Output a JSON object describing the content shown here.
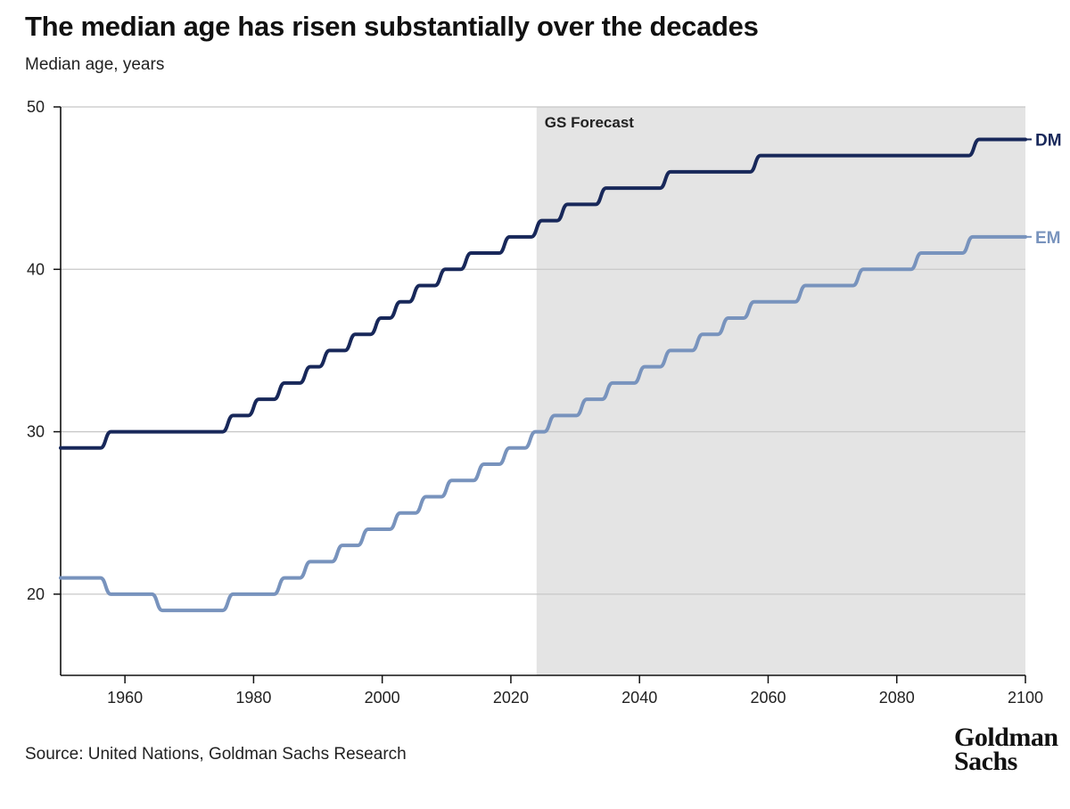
{
  "header": {
    "title": "The median age has risen substantially over the decades",
    "subtitle": "Median age, years"
  },
  "footer": {
    "source": "Source: United Nations, Goldman Sachs Research",
    "logo_line1": "Goldman",
    "logo_line2": "Sachs"
  },
  "chart_data": {
    "type": "line",
    "title": "The median age has risen substantially over the decades",
    "ylabel": "Median age, years",
    "xlim": [
      1950,
      2100
    ],
    "ylim": [
      15,
      50
    ],
    "x_ticks": [
      1960,
      1980,
      2000,
      2020,
      2040,
      2060,
      2080,
      2100
    ],
    "y_ticks": [
      20,
      30,
      40,
      50
    ],
    "grid": "horizontal",
    "forecast_region": {
      "label": "GS Forecast",
      "start": 2024,
      "end": 2100,
      "color": "#e4e4e4"
    },
    "series": [
      {
        "name": "DM",
        "color": "#18285a",
        "steps": [
          [
            1950,
            29
          ],
          [
            1957,
            30
          ],
          [
            1976,
            31
          ],
          [
            1980,
            32
          ],
          [
            1984,
            33
          ],
          [
            1988,
            34
          ],
          [
            1991,
            35
          ],
          [
            1995,
            36
          ],
          [
            1999,
            37
          ],
          [
            2002,
            38
          ],
          [
            2005,
            39
          ],
          [
            2009,
            40
          ],
          [
            2013,
            41
          ],
          [
            2019,
            42
          ],
          [
            2024,
            43
          ],
          [
            2028,
            44
          ],
          [
            2034,
            45
          ],
          [
            2044,
            46
          ],
          [
            2058,
            47
          ],
          [
            2092,
            48
          ],
          [
            2100,
            48
          ]
        ]
      },
      {
        "name": "EM",
        "color": "#7893bd",
        "steps": [
          [
            1950,
            21
          ],
          [
            1957,
            20
          ],
          [
            1965,
            19
          ],
          [
            1976,
            20
          ],
          [
            1984,
            21
          ],
          [
            1988,
            22
          ],
          [
            1993,
            23
          ],
          [
            1997,
            24
          ],
          [
            2002,
            25
          ],
          [
            2006,
            26
          ],
          [
            2010,
            27
          ],
          [
            2015,
            28
          ],
          [
            2019,
            29
          ],
          [
            2023,
            30
          ],
          [
            2026,
            31
          ],
          [
            2031,
            32
          ],
          [
            2035,
            33
          ],
          [
            2040,
            34
          ],
          [
            2044,
            35
          ],
          [
            2049,
            36
          ],
          [
            2053,
            37
          ],
          [
            2057,
            38
          ],
          [
            2065,
            39
          ],
          [
            2074,
            40
          ],
          [
            2083,
            41
          ],
          [
            2091,
            42
          ],
          [
            2100,
            42
          ]
        ]
      }
    ]
  }
}
